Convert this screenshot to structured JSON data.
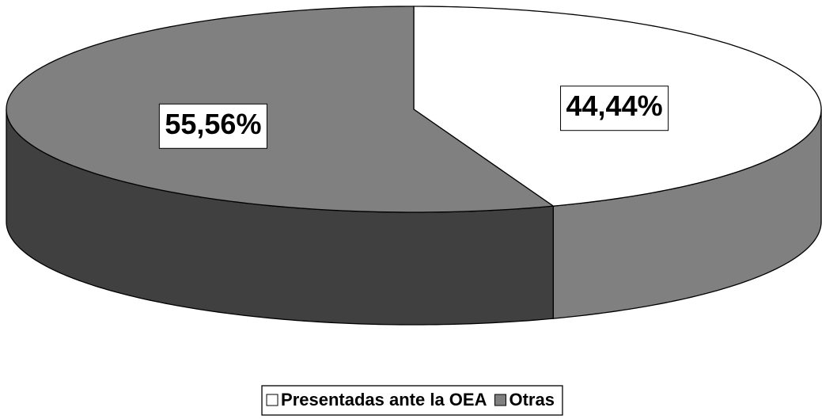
{
  "chart_data": {
    "type": "pie3d",
    "categories": [
      "Presentadas ante la OEA",
      "Otras"
    ],
    "values": [
      44.44,
      55.56
    ],
    "value_labels": [
      "44,44%",
      "55,56%"
    ],
    "colors": [
      "#ffffff",
      "#808080"
    ],
    "side_colors": [
      "#808080",
      "#404040"
    ],
    "legend": "bottom"
  }
}
